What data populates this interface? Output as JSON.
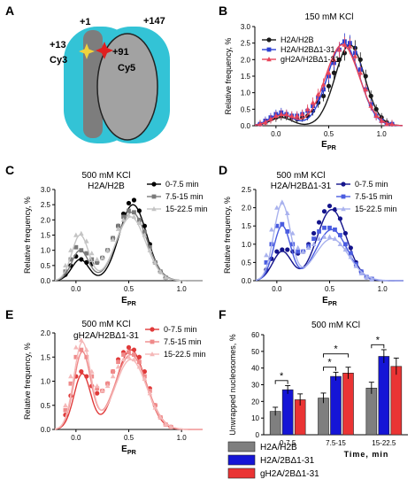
{
  "panels": {
    "A": {
      "label": "A",
      "annotations": [
        "+1",
        "+147",
        "+13",
        "Cy3",
        "+91",
        "Cy5"
      ],
      "colors": {
        "histone": "#33c3d6",
        "dna": "#9a9a9a",
        "donor": "#f0d23c",
        "acceptor": "#e02020"
      }
    },
    "B": {
      "label": "B"
    },
    "C": {
      "label": "C"
    },
    "D": {
      "label": "D"
    },
    "E": {
      "label": "E"
    },
    "F": {
      "label": "F"
    }
  },
  "chart_data": [
    {
      "id": "B",
      "type": "line",
      "title": "150 mM KCl",
      "xlabel": "E_PR",
      "ylabel": "Relative frequency, %",
      "xlim": [
        -0.2,
        1.2
      ],
      "ylim": [
        0,
        3.0
      ],
      "xticks": [
        0.0,
        0.5,
        1.0
      ],
      "xtick_labels": [
        "0.0",
        "0.5",
        "1.0"
      ],
      "yticks": [
        0.0,
        0.5,
        1.0,
        1.5,
        2.0,
        2.5,
        3.0
      ],
      "ytick_labels": [
        "0.0",
        "0.5",
        "1.0",
        "1.5",
        "2.0",
        "2.5",
        "3.0"
      ],
      "legend_position": "top-left",
      "error_bars": true,
      "series": [
        {
          "name": "H2A/H2B",
          "color": "#1a1a1a",
          "marker": "circle",
          "x": [
            -0.15,
            -0.1,
            -0.05,
            0.0,
            0.05,
            0.1,
            0.15,
            0.2,
            0.25,
            0.3,
            0.35,
            0.4,
            0.45,
            0.5,
            0.55,
            0.6,
            0.65,
            0.7,
            0.75,
            0.8,
            0.85,
            0.9,
            0.95,
            1.0,
            1.05,
            1.1
          ],
          "y": [
            0.05,
            0.1,
            0.2,
            0.25,
            0.3,
            0.3,
            0.25,
            0.2,
            0.25,
            0.3,
            0.45,
            0.7,
            0.9,
            1.2,
            1.6,
            2.0,
            2.2,
            2.45,
            2.35,
            2.0,
            1.5,
            0.9,
            0.5,
            0.25,
            0.1,
            0.05
          ],
          "fit_mu": [
            0.05,
            0.7
          ],
          "fit_sigma": [
            0.1,
            0.14
          ],
          "fit_amp": [
            0.25,
            2.45
          ]
        },
        {
          "name": "H2A/H2BΔ1-31",
          "color": "#2c3fd1",
          "marker": "square",
          "x": [
            -0.15,
            -0.1,
            -0.05,
            0.0,
            0.05,
            0.1,
            0.15,
            0.2,
            0.25,
            0.3,
            0.35,
            0.4,
            0.45,
            0.5,
            0.55,
            0.6,
            0.65,
            0.7,
            0.75,
            0.8,
            0.85,
            0.9,
            0.95,
            1.0,
            1.05,
            1.1
          ],
          "y": [
            0.05,
            0.15,
            0.25,
            0.35,
            0.4,
            0.35,
            0.3,
            0.3,
            0.35,
            0.45,
            0.6,
            0.85,
            1.1,
            1.5,
            1.9,
            2.3,
            2.55,
            2.5,
            2.2,
            1.7,
            1.1,
            0.65,
            0.3,
            0.15,
            0.05,
            0.05
          ],
          "fit_mu": [
            0.05,
            0.64
          ],
          "fit_sigma": [
            0.11,
            0.15
          ],
          "fit_amp": [
            0.35,
            2.5
          ]
        },
        {
          "name": "gH2A/H2BΔ1-31",
          "color": "#e8455a",
          "marker": "triangle",
          "x": [
            -0.15,
            -0.1,
            -0.05,
            0.0,
            0.05,
            0.1,
            0.15,
            0.2,
            0.25,
            0.3,
            0.35,
            0.4,
            0.45,
            0.5,
            0.55,
            0.6,
            0.65,
            0.7,
            0.75,
            0.8,
            0.85,
            0.9,
            0.95,
            1.0,
            1.05,
            1.1
          ],
          "y": [
            0.05,
            0.1,
            0.2,
            0.3,
            0.35,
            0.35,
            0.3,
            0.3,
            0.35,
            0.5,
            0.7,
            0.95,
            1.25,
            1.6,
            2.0,
            2.3,
            2.45,
            2.4,
            2.1,
            1.6,
            1.1,
            0.6,
            0.3,
            0.15,
            0.05,
            0.05
          ],
          "fit_mu": [
            0.06,
            0.63
          ],
          "fit_sigma": [
            0.11,
            0.16
          ],
          "fit_amp": [
            0.32,
            2.45
          ]
        }
      ]
    },
    {
      "id": "C",
      "type": "line",
      "title": "500 mM KCl",
      "subtitle": "H2A/H2B",
      "xlabel": "E_PR",
      "ylabel": "Relative frequency, %",
      "xlim": [
        -0.2,
        1.2
      ],
      "ylim": [
        0,
        3.0
      ],
      "xticks": [
        0.0,
        0.5,
        1.0
      ],
      "xtick_labels": [
        "0.0",
        "0.5",
        "1.0"
      ],
      "yticks": [
        0.0,
        0.5,
        1.0,
        1.5,
        2.0,
        2.5,
        3.0
      ],
      "ytick_labels": [
        "0.0",
        "0.5",
        "1.0",
        "1.5",
        "2.0",
        "2.5",
        "3.0"
      ],
      "legend_position": "top-right",
      "series": [
        {
          "name": "0-7.5 min",
          "color": "#000000",
          "marker": "circle",
          "x": [
            -0.1,
            -0.05,
            0.0,
            0.05,
            0.1,
            0.15,
            0.2,
            0.25,
            0.3,
            0.35,
            0.4,
            0.45,
            0.5,
            0.55,
            0.6,
            0.65,
            0.7,
            0.75,
            0.8,
            0.85
          ],
          "y": [
            0.2,
            0.5,
            0.8,
            0.7,
            0.6,
            0.55,
            0.6,
            0.75,
            1.0,
            1.4,
            1.8,
            2.2,
            2.55,
            2.65,
            2.3,
            1.8,
            1.2,
            0.6,
            0.3,
            0.1
          ],
          "fit_mu": [
            0.04,
            0.54
          ],
          "fit_sigma": [
            0.08,
            0.13
          ],
          "fit_amp": [
            0.7,
            2.5
          ]
        },
        {
          "name": "7.5-15 min",
          "color": "#7a7a7a",
          "marker": "square",
          "x": [
            -0.1,
            -0.05,
            0.0,
            0.05,
            0.1,
            0.15,
            0.2,
            0.25,
            0.3,
            0.35,
            0.4,
            0.45,
            0.5,
            0.55,
            0.6,
            0.65,
            0.7,
            0.75,
            0.8,
            0.85
          ],
          "y": [
            0.3,
            0.7,
            1.1,
            1.0,
            0.9,
            0.7,
            0.6,
            0.75,
            1.0,
            1.4,
            1.8,
            2.1,
            2.3,
            2.25,
            2.0,
            1.6,
            1.1,
            0.6,
            0.3,
            0.1
          ],
          "fit_mu": [
            0.04,
            0.53
          ],
          "fit_sigma": [
            0.08,
            0.14
          ],
          "fit_amp": [
            1.0,
            2.25
          ]
        },
        {
          "name": "15-22.5 min",
          "color": "#c4c4c4",
          "marker": "triangle",
          "x": [
            -0.1,
            -0.05,
            0.0,
            0.05,
            0.1,
            0.15,
            0.2,
            0.25,
            0.3,
            0.35,
            0.4,
            0.45,
            0.5,
            0.55,
            0.6,
            0.65,
            0.7,
            0.75,
            0.8,
            0.85
          ],
          "y": [
            0.5,
            1.0,
            1.5,
            1.55,
            1.3,
            0.9,
            0.7,
            0.75,
            1.0,
            1.35,
            1.7,
            2.0,
            2.15,
            2.1,
            1.9,
            1.5,
            1.0,
            0.6,
            0.3,
            0.1
          ],
          "fit_mu": [
            0.04,
            0.52
          ],
          "fit_sigma": [
            0.08,
            0.14
          ],
          "fit_amp": [
            1.5,
            2.1
          ]
        }
      ]
    },
    {
      "id": "D",
      "type": "line",
      "title": "500 mM KCl",
      "subtitle": "H2A/H2BΔ1-31",
      "xlabel": "E_PR",
      "ylabel": "Relative frequency, %",
      "xlim": [
        -0.2,
        1.2
      ],
      "ylim": [
        0,
        2.5
      ],
      "xticks": [
        0.0,
        0.5,
        1.0
      ],
      "xtick_labels": [
        "0.0",
        "0.5",
        "1.0"
      ],
      "yticks": [
        0.0,
        0.5,
        1.0,
        1.5,
        2.0,
        2.5
      ],
      "ytick_labels": [
        "0.0",
        "0.5",
        "1.0",
        "1.5",
        "2.0",
        "2.5"
      ],
      "legend_position": "top-right",
      "series": [
        {
          "name": "0-7.5 min",
          "color": "#14148c",
          "marker": "circle",
          "x": [
            -0.1,
            -0.05,
            0.0,
            0.05,
            0.1,
            0.15,
            0.2,
            0.25,
            0.3,
            0.35,
            0.4,
            0.45,
            0.5,
            0.55,
            0.6,
            0.65,
            0.7,
            0.75,
            0.8,
            0.85,
            0.9
          ],
          "y": [
            0.3,
            0.6,
            0.8,
            0.85,
            0.85,
            0.8,
            0.75,
            0.8,
            1.0,
            1.3,
            1.6,
            1.9,
            2.05,
            1.95,
            1.7,
            1.3,
            0.9,
            0.5,
            0.25,
            0.1,
            0.05
          ],
          "fit_mu": [
            0.05,
            0.52
          ],
          "fit_sigma": [
            0.09,
            0.14
          ],
          "fit_amp": [
            0.8,
            1.95
          ]
        },
        {
          "name": "7.5-15 min",
          "color": "#4a5ce0",
          "marker": "square",
          "x": [
            -0.1,
            -0.05,
            0.0,
            0.05,
            0.1,
            0.15,
            0.2,
            0.25,
            0.3,
            0.35,
            0.4,
            0.45,
            0.5,
            0.55,
            0.6,
            0.65,
            0.7,
            0.75,
            0.8,
            0.85,
            0.9
          ],
          "y": [
            0.5,
            1.0,
            1.5,
            1.55,
            1.35,
            1.0,
            0.8,
            0.8,
            0.95,
            1.15,
            1.35,
            1.45,
            1.45,
            1.4,
            1.25,
            1.0,
            0.75,
            0.45,
            0.25,
            0.1,
            0.05
          ],
          "fit_mu": [
            0.05,
            0.52
          ],
          "fit_sigma": [
            0.08,
            0.15
          ],
          "fit_amp": [
            1.5,
            1.4
          ]
        },
        {
          "name": "15-22.5 min",
          "color": "#a9b2ee",
          "marker": "triangle",
          "x": [
            -0.1,
            -0.05,
            0.0,
            0.05,
            0.1,
            0.15,
            0.2,
            0.25,
            0.3,
            0.35,
            0.4,
            0.45,
            0.5,
            0.55,
            0.6,
            0.65,
            0.7,
            0.75,
            0.8,
            0.85,
            0.9
          ],
          "y": [
            0.7,
            1.4,
            2.0,
            2.15,
            1.85,
            1.3,
            0.9,
            0.8,
            0.9,
            1.0,
            1.15,
            1.2,
            1.2,
            1.15,
            1.0,
            0.85,
            0.65,
            0.4,
            0.2,
            0.1,
            0.05
          ],
          "fit_mu": [
            0.05,
            0.52
          ],
          "fit_sigma": [
            0.08,
            0.16
          ],
          "fit_amp": [
            2.1,
            1.15
          ]
        }
      ]
    },
    {
      "id": "E",
      "type": "line",
      "title": "500 mM KCl",
      "subtitle": "gH2A/H2BΔ1-31",
      "xlabel": "E_PR",
      "ylabel": "Relative frequency, %",
      "xlim": [
        -0.2,
        1.2
      ],
      "ylim": [
        0,
        2.0
      ],
      "xticks": [
        0.0,
        0.5,
        1.0
      ],
      "xtick_labels": [
        "0.0",
        "0.5",
        "1.0"
      ],
      "yticks": [
        0.0,
        0.5,
        1.0,
        1.5,
        2.0
      ],
      "ytick_labels": [
        "0.0",
        "0.5",
        "1.0",
        "1.5",
        "2.0"
      ],
      "legend_position": "top-right",
      "series": [
        {
          "name": "0-7.5 min",
          "color": "#e03a3a",
          "marker": "circle",
          "x": [
            -0.1,
            -0.05,
            0.0,
            0.05,
            0.1,
            0.15,
            0.2,
            0.25,
            0.3,
            0.35,
            0.4,
            0.45,
            0.5,
            0.55,
            0.6,
            0.65,
            0.7,
            0.75,
            0.8,
            0.85,
            0.9
          ],
          "y": [
            0.3,
            0.7,
            1.1,
            1.2,
            1.1,
            0.9,
            0.75,
            0.8,
            0.95,
            1.2,
            1.45,
            1.6,
            1.7,
            1.65,
            1.5,
            1.2,
            0.85,
            0.5,
            0.25,
            0.1,
            0.05
          ],
          "fit_mu": [
            0.06,
            0.52
          ],
          "fit_sigma": [
            0.08,
            0.14
          ],
          "fit_amp": [
            1.15,
            1.65
          ]
        },
        {
          "name": "7.5-15 min",
          "color": "#ef8a8a",
          "marker": "square",
          "x": [
            -0.1,
            -0.05,
            0.0,
            0.05,
            0.1,
            0.15,
            0.2,
            0.25,
            0.3,
            0.35,
            0.4,
            0.45,
            0.5,
            0.55,
            0.6,
            0.65,
            0.7,
            0.75,
            0.8,
            0.85,
            0.9
          ],
          "y": [
            0.4,
            0.95,
            1.5,
            1.65,
            1.5,
            1.1,
            0.85,
            0.8,
            0.95,
            1.2,
            1.4,
            1.55,
            1.6,
            1.55,
            1.4,
            1.1,
            0.8,
            0.5,
            0.25,
            0.1,
            0.05
          ],
          "fit_mu": [
            0.06,
            0.52
          ],
          "fit_sigma": [
            0.08,
            0.15
          ],
          "fit_amp": [
            1.6,
            1.55
          ]
        },
        {
          "name": "15-22.5 min",
          "color": "#f5b8b8",
          "marker": "triangle",
          "x": [
            -0.1,
            -0.05,
            0.0,
            0.05,
            0.1,
            0.15,
            0.2,
            0.25,
            0.3,
            0.35,
            0.4,
            0.45,
            0.5,
            0.55,
            0.6,
            0.65,
            0.7,
            0.75,
            0.8,
            0.85,
            0.9
          ],
          "y": [
            0.5,
            1.1,
            1.7,
            1.85,
            1.65,
            1.2,
            0.9,
            0.8,
            0.9,
            1.1,
            1.3,
            1.45,
            1.5,
            1.45,
            1.3,
            1.05,
            0.75,
            0.45,
            0.25,
            0.1,
            0.05
          ],
          "fit_mu": [
            0.06,
            0.52
          ],
          "fit_sigma": [
            0.08,
            0.15
          ],
          "fit_amp": [
            1.8,
            1.45
          ]
        }
      ]
    },
    {
      "id": "F",
      "type": "bar",
      "title": "500 mM KCl",
      "xlabel": "Time, min",
      "ylabel": "Unwrapped nucleosomes, %",
      "categories": [
        "0-7.5",
        "7.5-15",
        "15-22.5"
      ],
      "ylim": [
        0,
        60
      ],
      "yticks": [
        0,
        10,
        20,
        30,
        40,
        50,
        60
      ],
      "ytick_labels": [
        "0",
        "10",
        "20",
        "30",
        "40",
        "50",
        "60"
      ],
      "legend_position": "bottom-left",
      "series": [
        {
          "name": "H2A/H2B",
          "color": "#7f7f7f",
          "values": [
            14,
            22,
            28
          ],
          "errors": [
            2.5,
            3.0,
            3.5
          ]
        },
        {
          "name": "H2A/2BΔ1-31",
          "color": "#1515d6",
          "values": [
            27,
            35,
            47
          ],
          "errors": [
            2.5,
            2.5,
            4.0
          ]
        },
        {
          "name": "gH2A/2BΔ1-31",
          "color": "#ea3434",
          "values": [
            21,
            37,
            41
          ],
          "errors": [
            3.5,
            3.5,
            5.0
          ]
        }
      ],
      "significance": [
        {
          "category": 0,
          "from_series": 0,
          "to_series": 1,
          "label": "*"
        },
        {
          "category": 1,
          "from_series": 0,
          "to_series": 1,
          "label": "*"
        },
        {
          "category": 1,
          "from_series": 0,
          "to_series": 2,
          "label": "*"
        },
        {
          "category": 2,
          "from_series": 0,
          "to_series": 1,
          "label": "*"
        }
      ]
    }
  ]
}
